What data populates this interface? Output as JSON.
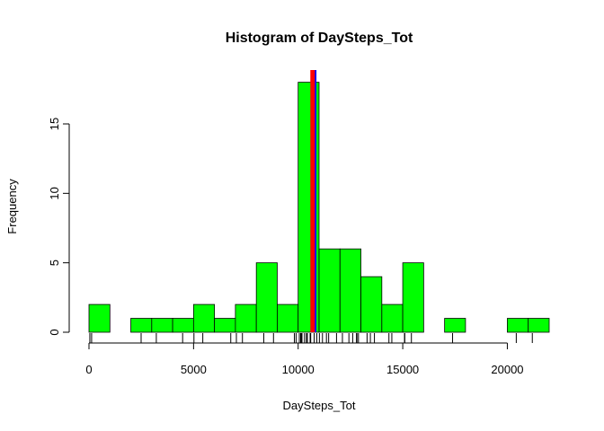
{
  "chart_data": {
    "type": "bar",
    "title": "Histogram of DaySteps_Tot",
    "xlabel": "DaySteps_Tot",
    "ylabel": "Frequency",
    "bin_width": 1000,
    "bins_start": [
      0,
      1000,
      2000,
      3000,
      4000,
      5000,
      6000,
      7000,
      8000,
      9000,
      10000,
      11000,
      12000,
      13000,
      14000,
      15000,
      16000,
      17000,
      18000,
      19000,
      20000,
      21000
    ],
    "values": [
      2,
      0,
      1,
      1,
      1,
      2,
      1,
      2,
      5,
      2,
      18,
      6,
      6,
      4,
      2,
      5,
      0,
      1,
      0,
      0,
      1,
      1
    ],
    "xlim": [
      0,
      22000
    ],
    "ylim": [
      0,
      18
    ],
    "x_ticks": [
      0,
      5000,
      10000,
      15000,
      20000
    ],
    "x_tick_labels": [
      "0",
      "5000",
      "10000",
      "15000",
      "20000"
    ],
    "y_ticks": [
      0,
      5,
      10,
      15
    ],
    "y_tick_labels": [
      "0",
      "5",
      "10",
      "15"
    ],
    "bar_color": "#00ff00",
    "bar_border": "#000000",
    "rug": [
      41,
      126,
      2492,
      3219,
      4477,
      5018,
      5441,
      6778,
      7047,
      7336,
      8355,
      8821,
      9819,
      9900,
      10056,
      10119,
      10139,
      10183,
      10304,
      10395,
      10439,
      10571,
      10600,
      10765,
      10890,
      11015,
      11162,
      11352,
      11458,
      11834,
      12116,
      12426,
      12608,
      12787,
      12811,
      12883,
      13294,
      13452,
      13646,
      14339,
      14478,
      15084,
      15098,
      15414,
      17382,
      20427,
      21194
    ],
    "vlines": [
      {
        "value": 10766,
        "color": "#0000ff"
      },
      {
        "value": 10690,
        "color": "#ff0000"
      }
    ],
    "grid": false,
    "legend": "none"
  }
}
